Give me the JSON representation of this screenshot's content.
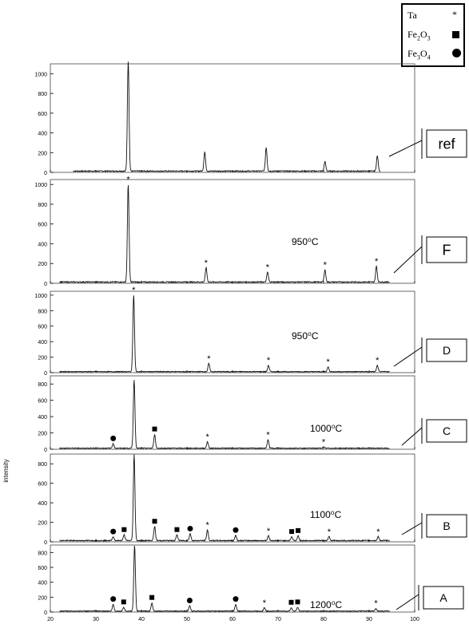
{
  "legend": {
    "items": [
      {
        "label": "Ta",
        "symbol": "*"
      },
      {
        "label": "Fe2O3",
        "symbol": "square"
      },
      {
        "label": "Fe3O4",
        "symbol": "circle"
      }
    ]
  },
  "ylabel": "intensity",
  "chart_data": {
    "type": "line",
    "xlim": [
      20,
      100
    ],
    "x_ticks": [
      "20",
      "30",
      "40",
      "50",
      "60",
      "70",
      "80",
      "90",
      "100"
    ],
    "panels": [
      {
        "id": "ref",
        "label": "ref",
        "temperature": "",
        "ylim": [
          0,
          1100
        ],
        "y_ticks": [
          "0",
          "200",
          "400",
          "600",
          "800",
          "1000"
        ],
        "peaks": [
          {
            "x": 37.1,
            "y": 1120,
            "phase": ""
          },
          {
            "x": 53.9,
            "y": 195,
            "phase": ""
          },
          {
            "x": 67.4,
            "y": 240,
            "phase": ""
          },
          {
            "x": 80.3,
            "y": 95,
            "phase": ""
          },
          {
            "x": 91.8,
            "y": 155,
            "phase": ""
          }
        ]
      },
      {
        "id": "F",
        "label": "F",
        "temperature": "950⁰C",
        "ylim": [
          0,
          1050
        ],
        "y_ticks": [
          "0",
          "200",
          "400",
          "600",
          "800",
          "1000"
        ],
        "peaks": [
          {
            "x": 37.1,
            "y": 990,
            "phase": "Ta"
          },
          {
            "x": 54.2,
            "y": 145,
            "phase": "Ta"
          },
          {
            "x": 67.7,
            "y": 100,
            "phase": "Ta"
          },
          {
            "x": 80.3,
            "y": 125,
            "phase": "Ta"
          },
          {
            "x": 91.6,
            "y": 160,
            "phase": "Ta"
          }
        ]
      },
      {
        "id": "D",
        "label": "D",
        "temperature": "950⁰C",
        "ylim": [
          0,
          1050
        ],
        "y_ticks": [
          "0",
          "200",
          "400",
          "600",
          "800",
          "1000"
        ],
        "peaks": [
          {
            "x": 38.3,
            "y": 990,
            "phase": "Ta"
          },
          {
            "x": 54.8,
            "y": 105,
            "phase": "Ta"
          },
          {
            "x": 67.9,
            "y": 80,
            "phase": "Ta"
          },
          {
            "x": 81.0,
            "y": 60,
            "phase": "Ta"
          },
          {
            "x": 91.8,
            "y": 80,
            "phase": "Ta"
          }
        ]
      },
      {
        "id": "C",
        "label": "C",
        "temperature": "1000⁰C",
        "ylim": [
          0,
          900
        ],
        "y_ticks": [
          "0",
          "200",
          "400",
          "600",
          "800"
        ],
        "peaks": [
          {
            "x": 38.4,
            "y": 840,
            "phase": ""
          },
          {
            "x": 33.8,
            "y": 55,
            "phase": "Fe3O4"
          },
          {
            "x": 42.9,
            "y": 170,
            "phase": "Fe2O3"
          },
          {
            "x": 54.5,
            "y": 80,
            "phase": "Ta"
          },
          {
            "x": 67.8,
            "y": 105,
            "phase": "Ta"
          },
          {
            "x": 80.0,
            "y": 15,
            "phase": "Ta"
          }
        ]
      },
      {
        "id": "B",
        "label": "B",
        "temperature": "1100⁰C",
        "ylim": [
          0,
          900
        ],
        "y_ticks": [
          "0",
          "200",
          "400",
          "600",
          "800"
        ],
        "peaks": [
          {
            "x": 38.4,
            "y": 880,
            "phase": ""
          },
          {
            "x": 33.8,
            "y": 40,
            "phase": "Fe3O4"
          },
          {
            "x": 36.2,
            "y": 60,
            "phase": "Fe2O3"
          },
          {
            "x": 42.9,
            "y": 145,
            "phase": "Fe2O3"
          },
          {
            "x": 47.8,
            "y": 60,
            "phase": "Fe2O3"
          },
          {
            "x": 50.7,
            "y": 70,
            "phase": "Fe3O4"
          },
          {
            "x": 54.5,
            "y": 110,
            "phase": "Ta"
          },
          {
            "x": 60.7,
            "y": 55,
            "phase": "Fe3O4"
          },
          {
            "x": 67.9,
            "y": 50,
            "phase": "Ta"
          },
          {
            "x": 73.0,
            "y": 40,
            "phase": "Fe2O3"
          },
          {
            "x": 74.4,
            "y": 50,
            "phase": "Fe2O3"
          },
          {
            "x": 81.2,
            "y": 40,
            "phase": "Ta"
          },
          {
            "x": 92.0,
            "y": 40,
            "phase": "Ta"
          }
        ]
      },
      {
        "id": "A",
        "label": "A",
        "temperature": "1200⁰C",
        "ylim": [
          0,
          900
        ],
        "y_ticks": [
          "0",
          "200",
          "400",
          "600",
          "800"
        ],
        "peaks": [
          {
            "x": 38.5,
            "y": 880,
            "phase": ""
          },
          {
            "x": 33.8,
            "y": 90,
            "phase": "Fe3O4"
          },
          {
            "x": 36.1,
            "y": 50,
            "phase": "Fe2O3"
          },
          {
            "x": 42.3,
            "y": 110,
            "phase": "Fe2O3"
          },
          {
            "x": 50.6,
            "y": 70,
            "phase": "Fe3O4"
          },
          {
            "x": 60.7,
            "y": 90,
            "phase": "Fe3O4"
          },
          {
            "x": 67.0,
            "y": 45,
            "phase": "Ta"
          },
          {
            "x": 72.9,
            "y": 45,
            "phase": "Fe2O3"
          },
          {
            "x": 74.3,
            "y": 50,
            "phase": "Fe2O3"
          },
          {
            "x": 91.5,
            "y": 35,
            "phase": "Ta"
          }
        ]
      }
    ],
    "grid": false
  }
}
